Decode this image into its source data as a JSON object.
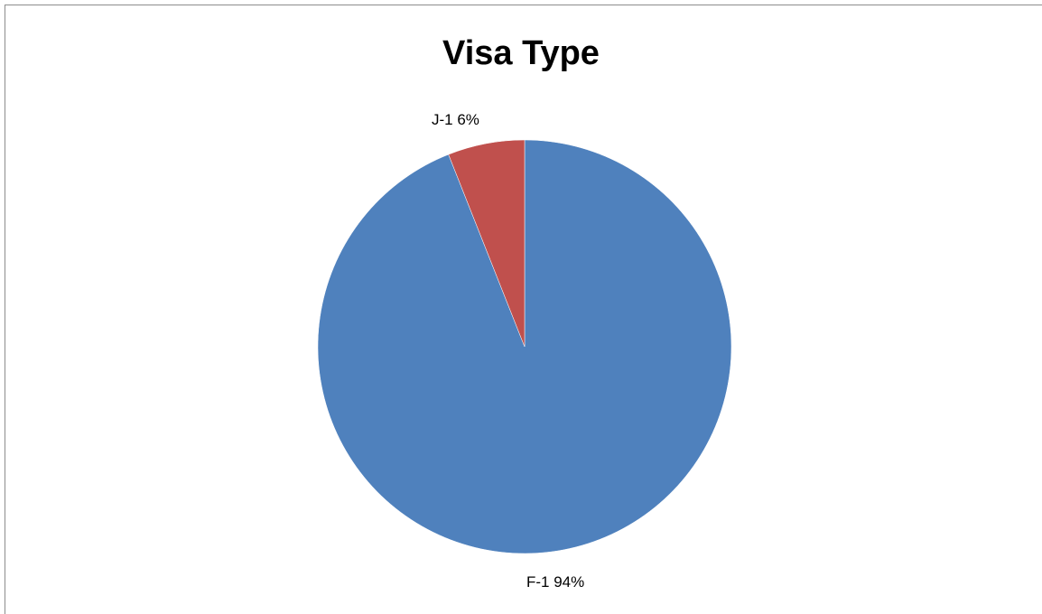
{
  "chart_data": {
    "type": "pie",
    "title": "Visa Type",
    "slices": [
      {
        "name": "F-1",
        "value": 94,
        "label": "F-1 94%",
        "color": "#4F81BD"
      },
      {
        "name": "J-1",
        "value": 6,
        "label": "J-1 6%",
        "color": "#C0504D"
      }
    ],
    "legend": "none"
  }
}
